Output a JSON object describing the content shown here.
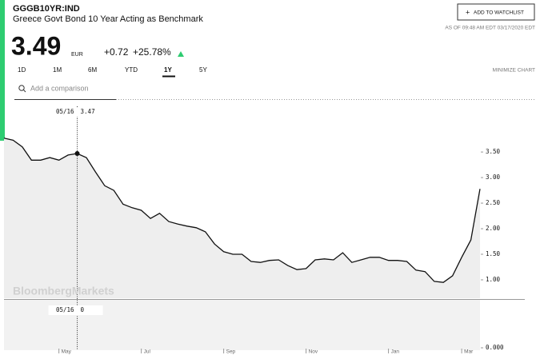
{
  "header": {
    "ticker": "GGGB10YR:IND",
    "name": "Greece Govt Bond 10 Year Acting as Benchmark",
    "price": "3.49",
    "currency": "EUR",
    "change": "+0.72",
    "change_pct": "+25.78%",
    "watchlist_button": "ADD TO WATCHLIST",
    "as_of": "AS OF 09:48 AM EDT 03/17/2020 EDT"
  },
  "ranges": [
    "1D",
    "1M",
    "6M",
    "YTD",
    "1Y",
    "5Y"
  ],
  "active_range": "1Y",
  "minimize": "MINIMIZE CHART",
  "search_placeholder": "Add a comparison",
  "watermark": "BloombergMarkets",
  "hover": {
    "date": "05/16",
    "value": 3.47,
    "volume": 0
  },
  "chart_data": {
    "type": "area",
    "categories": [
      null,
      null,
      null,
      null,
      null,
      null,
      "May",
      null,
      null,
      null,
      null,
      null,
      null,
      null,
      null,
      "Jul",
      null,
      null,
      null,
      null,
      null,
      null,
      null,
      null,
      "Sep",
      null,
      null,
      null,
      null,
      null,
      null,
      null,
      null,
      "Nov",
      null,
      null,
      null,
      null,
      null,
      null,
      null,
      null,
      "Jan",
      null,
      null,
      null,
      null,
      null,
      null,
      null,
      "Mar",
      null,
      null
    ],
    "values": [
      3.77,
      3.73,
      3.6,
      3.34,
      3.34,
      3.39,
      3.34,
      3.44,
      3.47,
      3.39,
      3.11,
      2.84,
      2.75,
      2.48,
      2.41,
      2.36,
      2.2,
      2.3,
      2.14,
      2.09,
      2.05,
      2.02,
      1.94,
      1.7,
      1.55,
      1.5,
      1.5,
      1.36,
      1.34,
      1.38,
      1.39,
      1.28,
      1.2,
      1.22,
      1.39,
      1.41,
      1.39,
      1.53,
      1.34,
      1.39,
      1.44,
      1.44,
      1.38,
      1.38,
      1.36,
      1.19,
      1.16,
      0.97,
      0.95,
      1.08,
      1.44,
      1.78,
      2.78
    ],
    "color": "#111111",
    "fill": "#eeeeee",
    "ylim": [
      0.64,
      4.44
    ],
    "yticks": [
      {
        "value": 1,
        "label": "1.00"
      },
      {
        "value": 1.5,
        "label": "1.50"
      },
      {
        "value": 2,
        "label": "2.00"
      },
      {
        "value": 2.5,
        "label": "2.50"
      },
      {
        "value": 3,
        "label": "3.00"
      },
      {
        "value": 3.5,
        "label": "3.50"
      }
    ],
    "volume_ticks": [
      {
        "value": 0,
        "label": "0.000"
      }
    ]
  }
}
